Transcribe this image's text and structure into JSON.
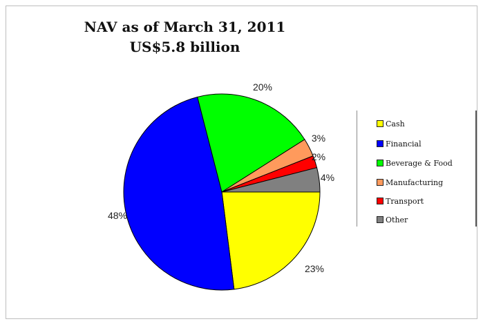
{
  "chart_data": {
    "type": "pie",
    "title": "NAV as of March 31, 2011",
    "subtitle": "US$5.8 billion",
    "legend_position": "right",
    "slices": [
      {
        "label": "Cash",
        "value": 23,
        "display": "23%",
        "color": "#ffff00"
      },
      {
        "label": "Financial",
        "value": 48,
        "display": "48%",
        "color": "#0000ff"
      },
      {
        "label": "Beverage & Food",
        "value": 20,
        "display": "20%",
        "color": "#00ff00"
      },
      {
        "label": "Manufacturing",
        "value": 3,
        "display": "3%",
        "color": "#ff9a5c"
      },
      {
        "label": "Transport",
        "value": 2,
        "display": "2%",
        "color": "#ff0000"
      },
      {
        "label": "Other",
        "value": 4,
        "display": "4%",
        "color": "#808080"
      }
    ]
  }
}
